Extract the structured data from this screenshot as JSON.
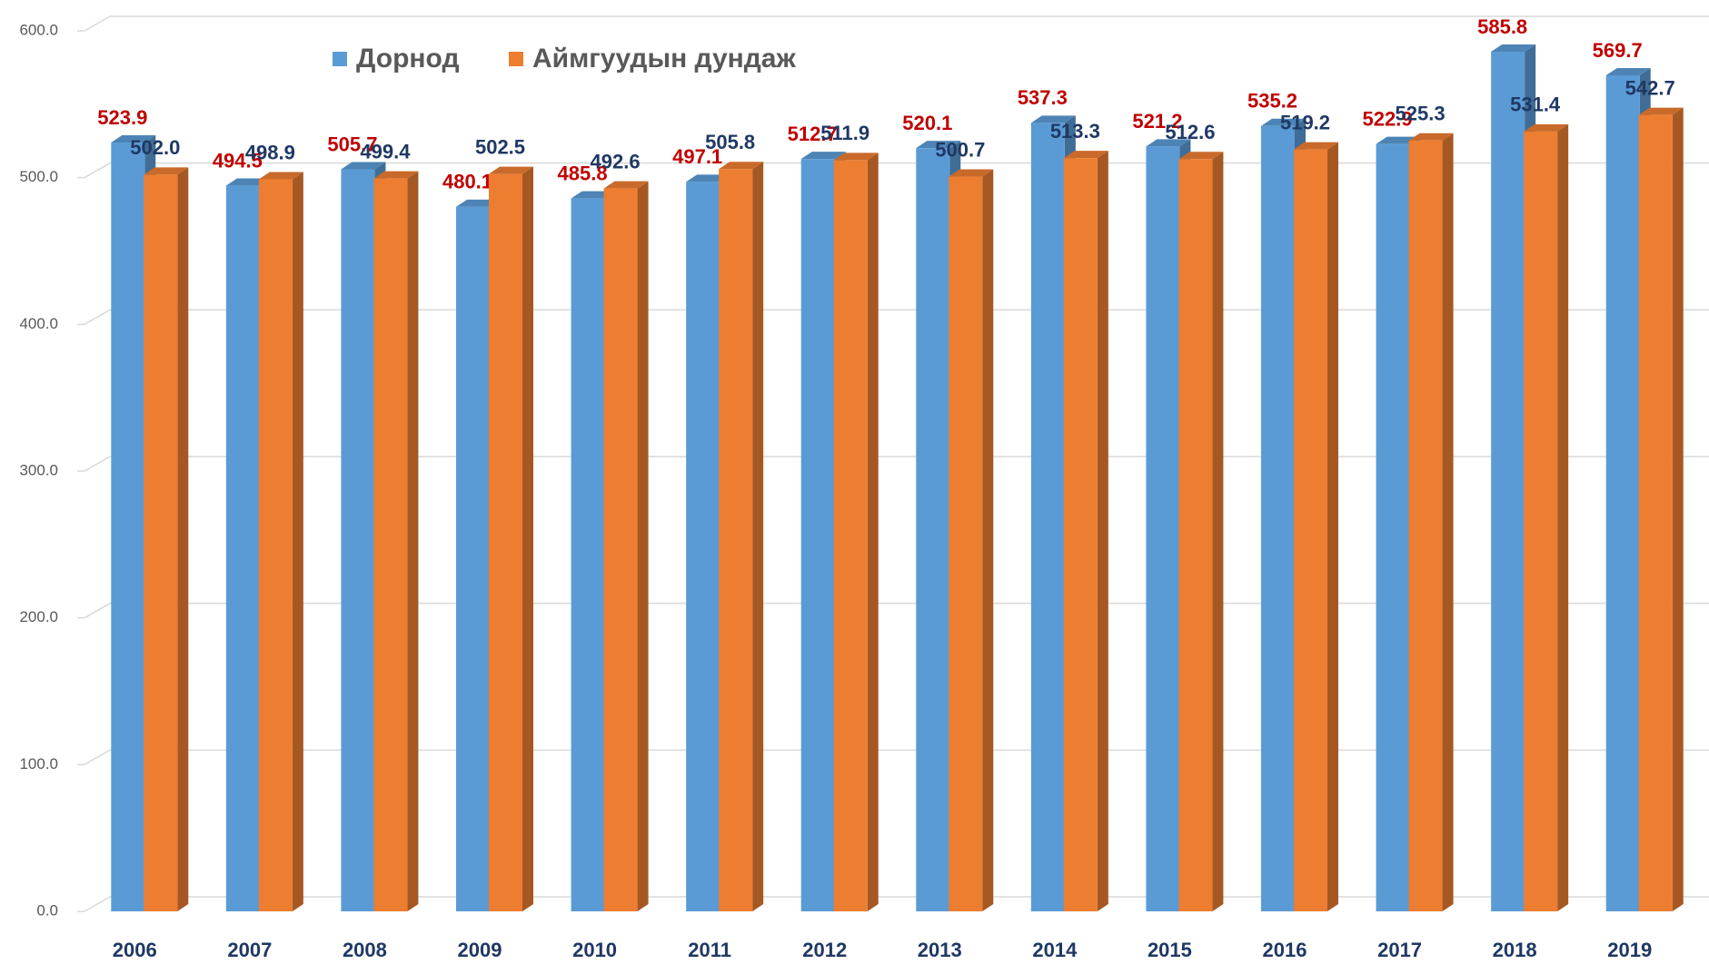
{
  "chart_data": {
    "type": "bar3d",
    "categories": [
      "2006",
      "2007",
      "2008",
      "2009",
      "2010",
      "2011",
      "2012",
      "2013",
      "2014",
      "2015",
      "2016",
      "2017",
      "2018",
      "2019"
    ],
    "series": [
      {
        "name": "Дорнод",
        "color": "#5b9bd5",
        "label_color": "#c00000",
        "values": [
          523.9,
          494.5,
          505.7,
          480.1,
          485.8,
          497.1,
          512.7,
          520.1,
          537.3,
          521.2,
          535.2,
          522.9,
          585.8,
          569.7
        ],
        "value_labels": [
          "523.9",
          "494.5",
          "505.7",
          "480.1",
          "485.8",
          "497.1",
          "512.7",
          "520.1",
          "537.3",
          "521.2",
          "535.2",
          "522.9",
          "585.8",
          "569.7"
        ]
      },
      {
        "name": "Аймгуудын дундаж",
        "color": "#ed7d31",
        "label_color": "#1f3864",
        "values": [
          502.0,
          498.9,
          499.4,
          502.5,
          492.6,
          505.8,
          511.9,
          500.7,
          513.3,
          512.6,
          519.2,
          525.3,
          531.4,
          542.7
        ],
        "value_labels": [
          "502.0",
          "498.9",
          "499.4",
          "502.5",
          "492.6",
          "505.8",
          "511.9",
          "500.7",
          "513.3",
          "512.6",
          "519.2",
          "525.3",
          "531.4",
          "542.7"
        ]
      }
    ],
    "ylim": [
      0,
      600
    ],
    "yticks": [
      {
        "value": 0,
        "label": "0.0"
      },
      {
        "value": 100,
        "label": "100.0"
      },
      {
        "value": 200,
        "label": "200.0"
      },
      {
        "value": 300,
        "label": "300.0"
      },
      {
        "value": 400,
        "label": "400.0"
      },
      {
        "value": 500,
        "label": "500.0"
      },
      {
        "value": 600,
        "label": "600.0"
      }
    ],
    "grid": true,
    "legend": "top-left"
  }
}
